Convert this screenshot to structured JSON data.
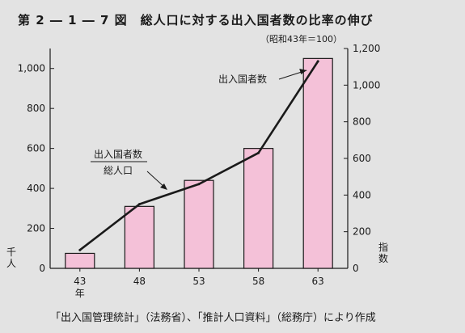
{
  "header": {
    "title": "第 2 ― 1 ― 7 図　総人口に対する出入国者数の比率の伸び",
    "subtitle": "（昭和43年＝100）"
  },
  "footer": {
    "source": "「出入国管理統計」（法務省）、「推計人口資料」（総務庁）により作成"
  },
  "chart_data": {
    "type": "bar",
    "categories": [
      "43",
      "48",
      "53",
      "58",
      "63"
    ],
    "x_unit_label": "年",
    "series": [
      {
        "values": [
          75,
          310,
          440,
          600,
          1050
        ],
        "axis": "left"
      },
      {
        "values": [
          100,
          350,
          460,
          630,
          1130
        ],
        "axis": "right"
      }
    ],
    "left_axis": {
      "unit_label": "千\n人",
      "ylim": [
        0,
        1100
      ],
      "ticks": [
        0,
        200,
        400,
        600,
        800,
        1000
      ],
      "tick_labels": [
        "0",
        "200",
        "400",
        "600",
        "800",
        "1,000"
      ]
    },
    "right_axis": {
      "unit_label": "指\n数",
      "ylim": [
        0,
        1200
      ],
      "ticks": [
        0,
        200,
        400,
        600,
        800,
        1000,
        1200
      ],
      "tick_labels": [
        "0",
        "200",
        "400",
        "600",
        "800",
        "1,000",
        "1,200"
      ]
    },
    "annotations": {
      "bar_label": "出入国者数",
      "line_label_numerator": "出入国者数",
      "line_label_denominator": "総人口"
    },
    "colors": {
      "bar_fill": "#f4c1d8",
      "bar_stroke": "#1a1a1a",
      "line": "#1a1a1a",
      "background": "#e3e3e3"
    },
    "grid": false
  }
}
